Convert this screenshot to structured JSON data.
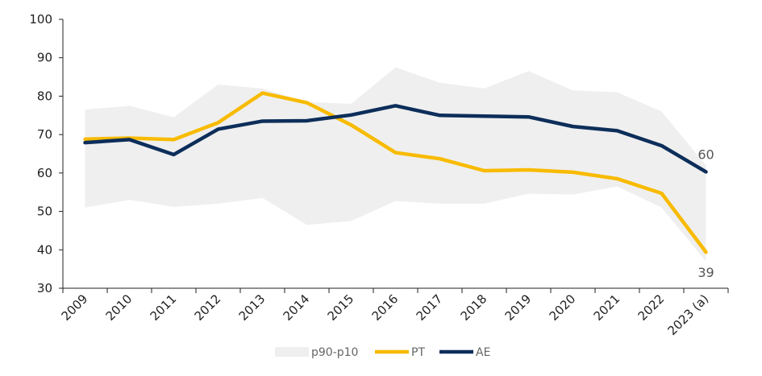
{
  "chart_data": {
    "type": "line",
    "categories": [
      "2009",
      "2010",
      "2011",
      "2012",
      "2013",
      "2014",
      "2015",
      "2016",
      "2017",
      "2018",
      "2019",
      "2020",
      "2021",
      "2022",
      "2023 (a)"
    ],
    "ylim": [
      30,
      100
    ],
    "yticks": [
      30,
      40,
      50,
      60,
      70,
      80,
      90,
      100
    ],
    "band": {
      "name": "p90-p10",
      "color": "#efefef",
      "upper": [
        76.5,
        77.5,
        74.5,
        83,
        82,
        78.5,
        78,
        87.5,
        83.5,
        82,
        86.5,
        81.5,
        81,
        76,
        62
      ],
      "lower": [
        51,
        53,
        51.2,
        52,
        53.5,
        46.5,
        47.5,
        52.7,
        52,
        52,
        54.6,
        54.4,
        56.5,
        51,
        37
      ]
    },
    "series": [
      {
        "name": "PT",
        "color": "#f8bb00",
        "values": [
          68.8,
          69.1,
          68.7,
          73.1,
          80.8,
          78.3,
          72.5,
          65.3,
          63.7,
          60.6,
          60.8,
          60.2,
          58.5,
          54.7,
          39.4
        ]
      },
      {
        "name": "AE",
        "color": "#0d2e5a",
        "values": [
          67.9,
          68.7,
          64.8,
          71.4,
          73.5,
          73.6,
          75.1,
          77.5,
          75,
          74.8,
          74.6,
          72.1,
          71,
          67.1,
          60.3
        ]
      }
    ],
    "end_labels": {
      "PT": "39",
      "AE": "60"
    },
    "legend_position": "bottom",
    "grid": false
  }
}
